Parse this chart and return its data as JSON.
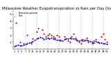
{
  "title": "Milwaukee Weather Evapotranspiration vs Rain per Day (Inches)",
  "title_fontsize": 3.8,
  "background_color": "#ffffff",
  "plot_bg_color": "#ffffff",
  "grid_color": "#888888",
  "xlim": [
    0.5,
    52
  ],
  "ylim": [
    0.0,
    0.55
  ],
  "yticks": [
    0.1,
    0.2,
    0.3,
    0.4,
    0.5
  ],
  "ytick_labels": [
    ".1",
    ".2",
    ".3",
    ".4",
    ".5"
  ],
  "xtick_positions": [
    1,
    3,
    5,
    7,
    9,
    11,
    13,
    15,
    17,
    19,
    21,
    23,
    25,
    27,
    29,
    31,
    33,
    35,
    37,
    39,
    41,
    43,
    45,
    47,
    49,
    51
  ],
  "xtick_labels": [
    "1",
    "3",
    "5",
    "7",
    "9",
    "11",
    "13",
    "15",
    "17",
    "19",
    "21",
    "23",
    "25",
    "27",
    "29",
    "31",
    "33",
    "35",
    "37",
    "39",
    "41",
    "43",
    "45",
    "47",
    "49",
    "51"
  ],
  "et_color": "#0000cc",
  "rain_color": "#cc0000",
  "black_color": "#000000",
  "et_x": [
    1,
    2,
    3,
    4,
    5,
    6,
    7,
    8,
    9,
    10,
    11,
    12,
    13,
    14,
    15,
    16,
    17,
    18,
    19,
    20,
    21,
    22,
    23,
    24,
    25,
    26,
    27,
    28,
    29,
    30,
    31,
    32,
    33,
    34,
    35,
    36,
    37,
    38,
    39,
    40,
    41,
    42,
    43,
    44,
    45,
    46,
    47,
    48,
    49,
    50,
    51
  ],
  "et_y": [
    0.04,
    0.05,
    0.06,
    0.05,
    0.05,
    0.06,
    0.07,
    0.08,
    0.09,
    0.1,
    0.11,
    0.13,
    0.15,
    0.16,
    0.17,
    0.16,
    0.14,
    0.15,
    0.16,
    0.15,
    0.16,
    0.15,
    0.14,
    0.13,
    0.13,
    0.13,
    0.12,
    0.14,
    0.15,
    0.15,
    0.16,
    0.15,
    0.15,
    0.14,
    0.13,
    0.12,
    0.13,
    0.12,
    0.13,
    0.13,
    0.12,
    0.11,
    0.1,
    0.09,
    0.11,
    0.1,
    0.09,
    0.09,
    0.08,
    0.08,
    0.07
  ],
  "rain_x": [
    1,
    2,
    4,
    6,
    8,
    10,
    11,
    13,
    14,
    16,
    17,
    18,
    19,
    20,
    21,
    22,
    23,
    24,
    25,
    26,
    28,
    29,
    30,
    31,
    32,
    33,
    34,
    35,
    36,
    37,
    38,
    39,
    40,
    41,
    43,
    44,
    45,
    46,
    48,
    49,
    50,
    51
  ],
  "rain_y": [
    0.48,
    0.38,
    0.1,
    0.08,
    0.2,
    0.08,
    0.15,
    0.25,
    0.3,
    0.28,
    0.22,
    0.18,
    0.2,
    0.22,
    0.2,
    0.18,
    0.16,
    0.2,
    0.18,
    0.12,
    0.18,
    0.15,
    0.12,
    0.1,
    0.18,
    0.22,
    0.16,
    0.12,
    0.1,
    0.08,
    0.14,
    0.12,
    0.16,
    0.1,
    0.08,
    0.12,
    0.14,
    0.1,
    0.18,
    0.22,
    0.14,
    0.1
  ],
  "vgrid_positions": [
    7,
    13,
    19,
    25,
    31,
    37,
    43,
    49
  ],
  "marker_size": 2.5,
  "legend_et": "Evapotranspiration",
  "legend_rain": "Rain"
}
